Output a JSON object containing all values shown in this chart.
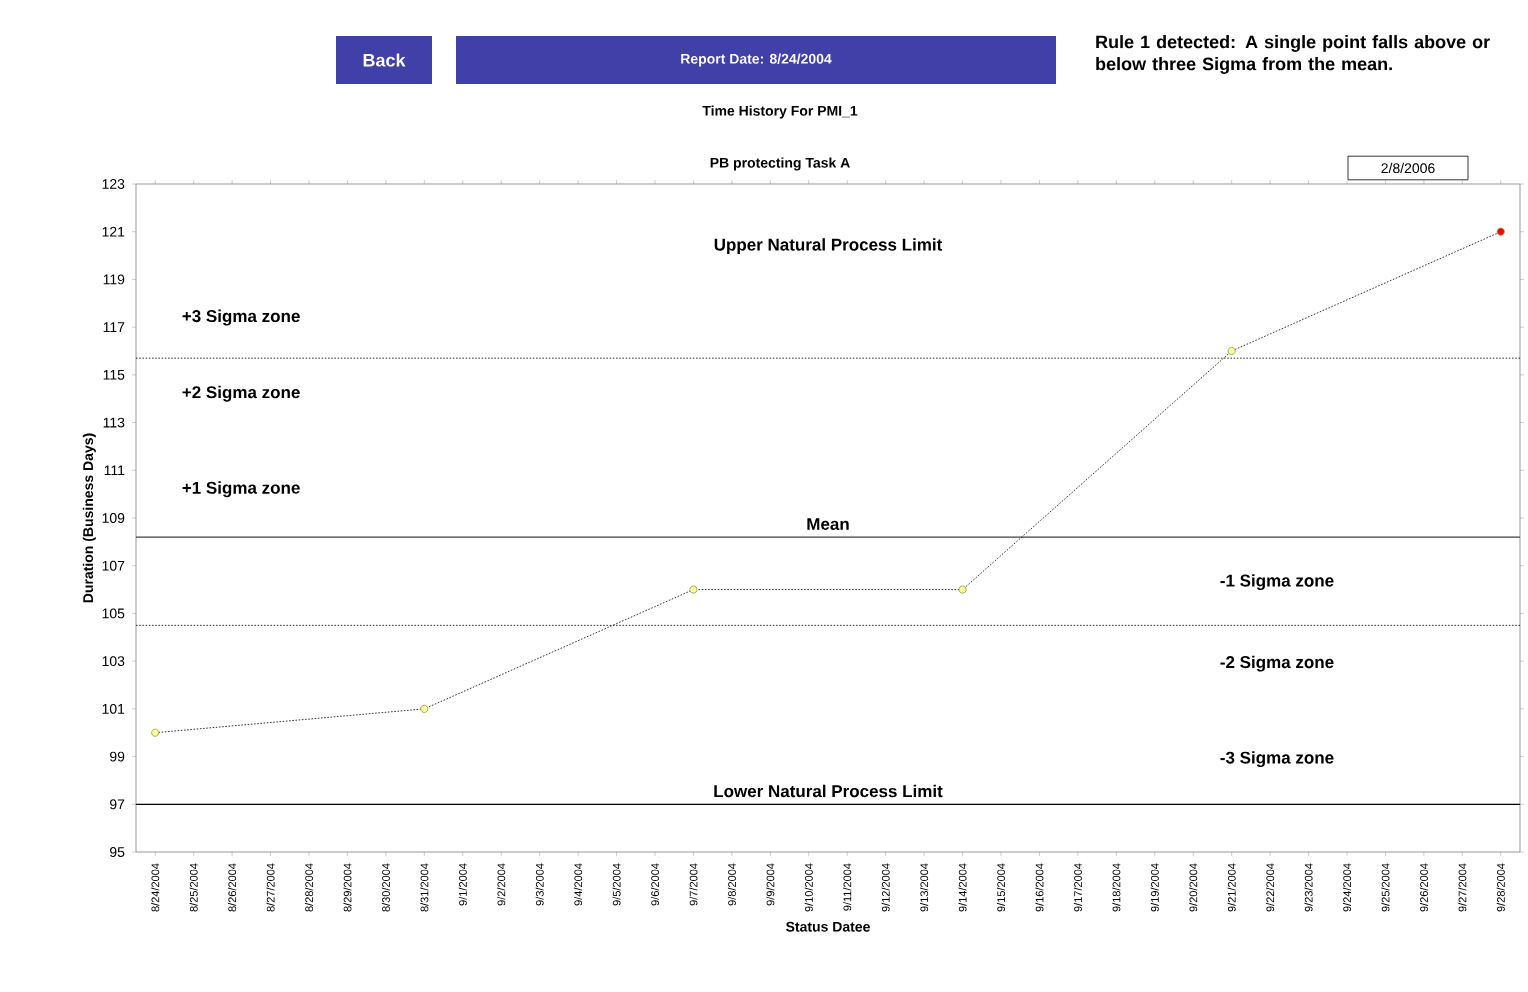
{
  "chart_data": {
    "type": "line",
    "title": "Time History For PMI_1",
    "subtitle": "PB protecting Task A",
    "xlabel": "Status Datee",
    "ylabel": "Duration (Business Days)",
    "categories": [
      "8/24/2004",
      "8/25/2004",
      "8/26/2004",
      "8/27/2004",
      "8/28/2004",
      "8/29/2004",
      "8/30/2004",
      "8/31/2004",
      "9/1/2004",
      "9/2/2004",
      "9/3/2004",
      "9/4/2004",
      "9/5/2004",
      "9/6/2004",
      "9/7/2004",
      "9/8/2004",
      "9/9/2004",
      "9/10/2004",
      "9/11/2004",
      "9/12/2004",
      "9/13/2004",
      "9/14/2004",
      "9/15/2004",
      "9/16/2004",
      "9/17/2004",
      "9/18/2004",
      "9/19/2004",
      "9/20/2004",
      "9/21/2004",
      "9/22/2004",
      "9/23/2004",
      "9/24/2004",
      "9/25/2004",
      "9/26/2004",
      "9/27/2004",
      "9/28/2004"
    ],
    "series": [
      {
        "color": "#000000",
        "values": [
          100,
          null,
          null,
          null,
          null,
          null,
          null,
          101,
          null,
          null,
          null,
          null,
          null,
          null,
          106,
          null,
          null,
          null,
          null,
          null,
          null,
          106,
          null,
          null,
          null,
          null,
          null,
          null,
          116,
          null,
          null,
          null,
          null,
          null,
          null,
          121
        ],
        "colors": [
          "#ffff99",
          null,
          null,
          null,
          null,
          null,
          null,
          "#ffff99",
          null,
          null,
          null,
          null,
          null,
          null,
          "#ffff99",
          null,
          null,
          null,
          null,
          null,
          null,
          "#ffff99",
          null,
          null,
          null,
          null,
          null,
          null,
          "#ffff99",
          null,
          null,
          null,
          null,
          null,
          null,
          "#ff0000"
        ]
      }
    ],
    "ylim": [
      95,
      123
    ],
    "yticks": [
      95,
      97,
      99,
      101,
      103,
      105,
      107,
      109,
      111,
      113,
      115,
      117,
      119,
      121,
      123
    ],
    "marker": "circle",
    "line_style": "dotted",
    "grid": false,
    "ref_lines": [
      {
        "axis": "y",
        "value": 115.7,
        "line_style": "dotted",
        "color": "#000000"
      },
      {
        "axis": "y",
        "value": 108.2,
        "label": "Mean",
        "line_style": "solid",
        "color": "#404040"
      },
      {
        "axis": "y",
        "value": 104.5,
        "line_style": "dotted",
        "color": "#000000"
      },
      {
        "axis": "y",
        "value": 97,
        "label": "Lower Natural Process Limit",
        "line_style": "solid",
        "color": "#000000"
      }
    ],
    "annotations": [
      "Back",
      "Report Date: 8/24/2004",
      "Rule 1 detected: A single point falls above or below three Sigma from the mean.",
      "2/8/2006",
      "Upper Natural Process Limit",
      "+3 Sigma zone",
      "+2 Sigma zone",
      "+1 Sigma zone",
      "-1 Sigma zone",
      "-2 Sigma zone",
      "-3 Sigma zone"
    ]
  }
}
